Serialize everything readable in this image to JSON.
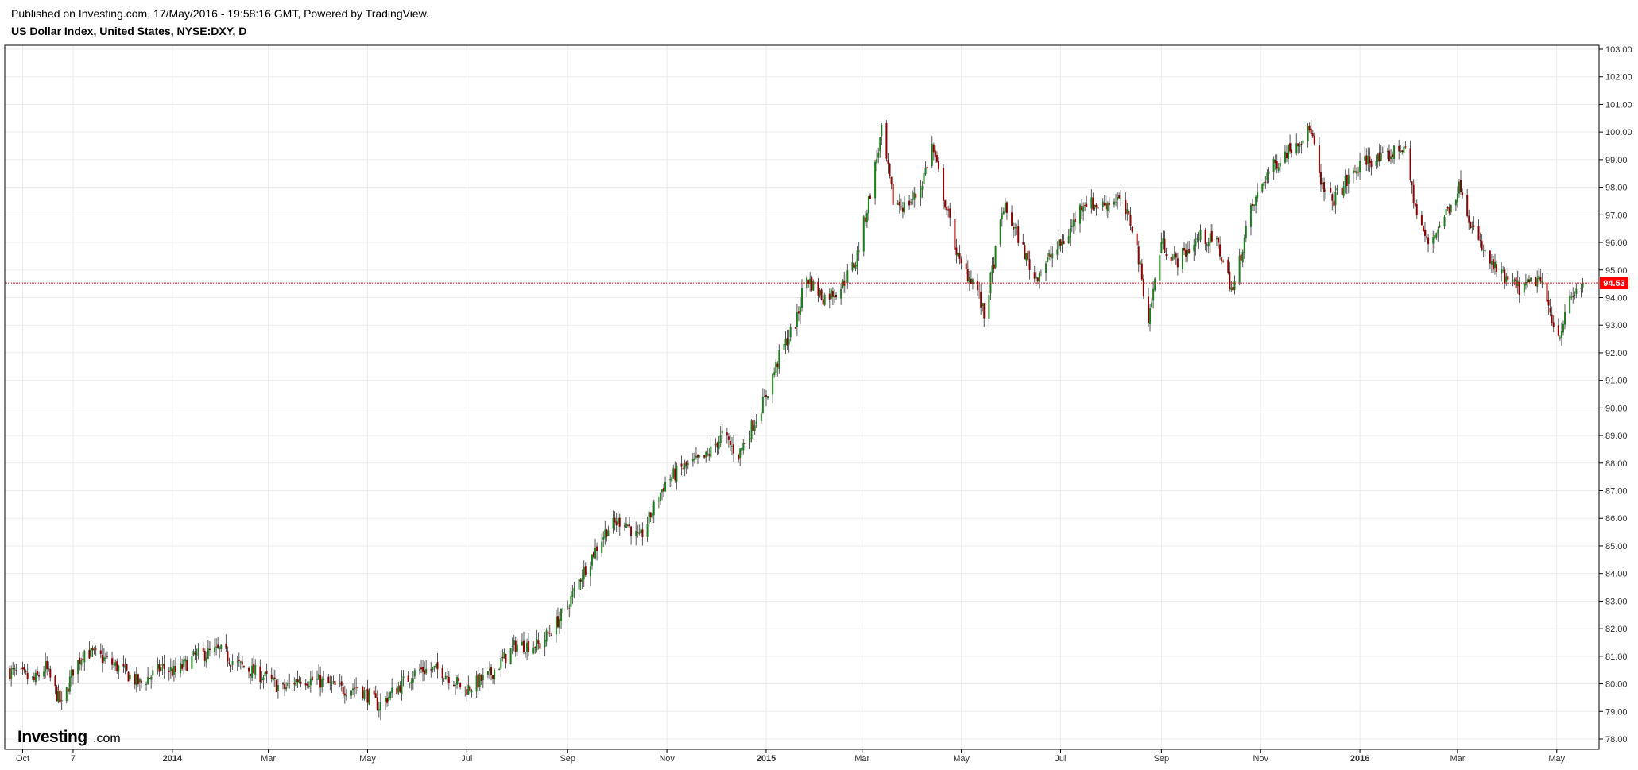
{
  "header": {
    "published": "Published on Investing.com, 17/May/2016 - 19:58:16 GMT, Powered by TradingView.",
    "instrument": "US Dollar Index, United States, NYSE:DXY, D"
  },
  "logo": {
    "main": "Investing",
    "suffix": ".com"
  },
  "colors": {
    "up": "#1e7d1e",
    "down": "#8b0000",
    "wick": "#555555",
    "last_price": "#ff0000",
    "grid": "#ebebeb",
    "border": "#000000"
  },
  "chart_data": {
    "type": "candlestick",
    "title": "US Dollar Index, United States, NYSE:DXY, D",
    "ylim": [
      77.6,
      103.1
    ],
    "y_ticks": [
      "78.00",
      "79.00",
      "80.00",
      "81.00",
      "82.00",
      "83.00",
      "84.00",
      "85.00",
      "86.00",
      "87.00",
      "88.00",
      "89.00",
      "90.00",
      "91.00",
      "92.00",
      "93.00",
      "94.00",
      "95.00",
      "96.00",
      "97.00",
      "98.00",
      "99.00",
      "100.00",
      "101.00",
      "102.00",
      "103.00"
    ],
    "x_range": [
      "2013-09-20",
      "2016-05-27"
    ],
    "x_ticks": [
      {
        "label": "Oct",
        "date": "2013-10-01",
        "bold": false
      },
      {
        "label": "7",
        "date": "2013-11-01",
        "bold": false
      },
      {
        "label": "2014",
        "date": "2014-01-01",
        "bold": true
      },
      {
        "label": "Mar",
        "date": "2014-03-01",
        "bold": false
      },
      {
        "label": "May",
        "date": "2014-05-01",
        "bold": false
      },
      {
        "label": "Jul",
        "date": "2014-07-01",
        "bold": false
      },
      {
        "label": "Sep",
        "date": "2014-09-01",
        "bold": false
      },
      {
        "label": "Nov",
        "date": "2014-11-01",
        "bold": false
      },
      {
        "label": "2015",
        "date": "2015-01-01",
        "bold": true
      },
      {
        "label": "Mar",
        "date": "2015-03-01",
        "bold": false
      },
      {
        "label": "May",
        "date": "2015-05-01",
        "bold": false
      },
      {
        "label": "Jul",
        "date": "2015-07-01",
        "bold": false
      },
      {
        "label": "Sep",
        "date": "2015-09-01",
        "bold": false
      },
      {
        "label": "Nov",
        "date": "2015-11-01",
        "bold": false
      },
      {
        "label": "2016",
        "date": "2016-01-01",
        "bold": true
      },
      {
        "label": "Mar",
        "date": "2016-03-01",
        "bold": false
      },
      {
        "label": "May",
        "date": "2016-05-01",
        "bold": false
      }
    ],
    "last_price": 94.53,
    "last_price_label": "94.53",
    "close_path": [
      [
        "2013-09-20",
        80.5
      ],
      [
        "2013-10-01",
        80.3
      ],
      [
        "2013-10-08",
        80.1
      ],
      [
        "2013-10-15",
        80.6
      ],
      [
        "2013-10-25",
        79.2
      ],
      [
        "2013-11-01",
        80.5
      ],
      [
        "2013-11-08",
        81.2
      ],
      [
        "2013-11-20",
        80.9
      ],
      [
        "2013-12-01",
        80.5
      ],
      [
        "2013-12-12",
        80.0
      ],
      [
        "2013-12-26",
        80.6
      ],
      [
        "2014-01-03",
        80.4
      ],
      [
        "2014-01-15",
        81.0
      ],
      [
        "2014-01-30",
        81.2
      ],
      [
        "2014-02-10",
        80.7
      ],
      [
        "2014-02-25",
        80.3
      ],
      [
        "2014-03-10",
        79.8
      ],
      [
        "2014-03-20",
        80.2
      ],
      [
        "2014-04-01",
        80.1
      ],
      [
        "2014-04-15",
        79.8
      ],
      [
        "2014-04-25",
        79.9
      ],
      [
        "2014-05-08",
        79.2
      ],
      [
        "2014-05-20",
        79.9
      ],
      [
        "2014-06-01",
        80.5
      ],
      [
        "2014-06-15",
        80.5
      ],
      [
        "2014-06-30",
        79.8
      ],
      [
        "2014-07-15",
        80.3
      ],
      [
        "2014-07-31",
        81.4
      ],
      [
        "2014-08-15",
        81.4
      ],
      [
        "2014-08-31",
        82.7
      ],
      [
        "2014-09-10",
        84.0
      ],
      [
        "2014-09-25",
        85.6
      ],
      [
        "2014-10-05",
        86.0
      ],
      [
        "2014-10-15",
        85.2
      ],
      [
        "2014-10-31",
        87.3
      ],
      [
        "2014-11-10",
        87.8
      ],
      [
        "2014-11-25",
        88.2
      ],
      [
        "2014-12-05",
        89.0
      ],
      [
        "2014-12-15",
        88.3
      ],
      [
        "2014-12-31",
        90.3
      ],
      [
        "2015-01-10",
        92.0
      ],
      [
        "2015-01-20",
        93.2
      ],
      [
        "2015-01-25",
        94.8
      ],
      [
        "2015-02-05",
        94.0
      ],
      [
        "2015-02-15",
        94.3
      ],
      [
        "2015-02-25",
        95.3
      ],
      [
        "2015-03-05",
        97.5
      ],
      [
        "2015-03-13",
        100.0
      ],
      [
        "2015-03-20",
        97.5
      ],
      [
        "2015-03-27",
        97.3
      ],
      [
        "2015-04-05",
        97.8
      ],
      [
        "2015-04-13",
        99.5
      ],
      [
        "2015-04-20",
        97.7
      ],
      [
        "2015-04-30",
        95.2
      ],
      [
        "2015-05-10",
        94.5
      ],
      [
        "2015-05-15",
        93.3
      ],
      [
        "2015-05-27",
        97.3
      ],
      [
        "2015-06-05",
        96.2
      ],
      [
        "2015-06-15",
        94.7
      ],
      [
        "2015-06-25",
        95.5
      ],
      [
        "2015-07-05",
        96.2
      ],
      [
        "2015-07-15",
        97.5
      ],
      [
        "2015-07-25",
        97.3
      ],
      [
        "2015-08-05",
        97.6
      ],
      [
        "2015-08-15",
        96.5
      ],
      [
        "2015-08-24",
        93.2
      ],
      [
        "2015-09-01",
        96.0
      ],
      [
        "2015-09-10",
        95.3
      ],
      [
        "2015-09-25",
        96.2
      ],
      [
        "2015-10-05",
        96.0
      ],
      [
        "2015-10-15",
        94.2
      ],
      [
        "2015-10-25",
        97.0
      ],
      [
        "2015-11-05",
        98.5
      ],
      [
        "2015-11-20",
        99.5
      ],
      [
        "2015-12-02",
        100.1
      ],
      [
        "2015-12-08",
        98.0
      ],
      [
        "2015-12-15",
        97.5
      ],
      [
        "2015-12-25",
        98.3
      ],
      [
        "2016-01-05",
        99.0
      ],
      [
        "2016-01-15",
        99.0
      ],
      [
        "2016-01-28",
        99.5
      ],
      [
        "2016-02-05",
        97.0
      ],
      [
        "2016-02-12",
        95.9
      ],
      [
        "2016-02-25",
        97.3
      ],
      [
        "2016-03-03",
        98.1
      ],
      [
        "2016-03-10",
        96.5
      ],
      [
        "2016-03-20",
        95.3
      ],
      [
        "2016-03-31",
        94.6
      ],
      [
        "2016-04-10",
        94.3
      ],
      [
        "2016-04-20",
        94.7
      ],
      [
        "2016-05-02",
        92.6
      ],
      [
        "2016-05-10",
        94.0
      ],
      [
        "2016-05-17",
        94.53
      ]
    ]
  }
}
